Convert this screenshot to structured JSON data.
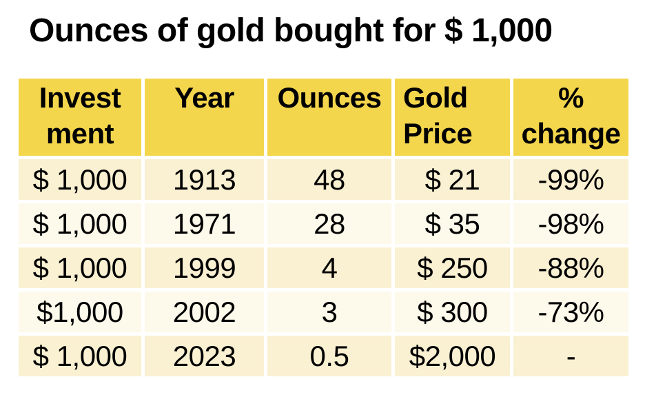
{
  "chart_data": {
    "type": "table",
    "title": "Ounces of gold bought for $ 1,000",
    "columns": [
      {
        "name": "Investment",
        "display": "Invest\nment"
      },
      {
        "name": "Year",
        "display": "Year"
      },
      {
        "name": "Ounces",
        "display": "Ounces"
      },
      {
        "name": "Gold Price",
        "display": "Gold\nPrice"
      },
      {
        "name": "% change",
        "display": "%\nchange"
      }
    ],
    "rows": [
      [
        "$ 1,000",
        "1913",
        "48",
        "$ 21",
        "-99%"
      ],
      [
        "$ 1,000",
        "1971",
        "28",
        "$ 35",
        "-98%"
      ],
      [
        "$ 1,000",
        "1999",
        "4",
        "$ 250",
        "-88%"
      ],
      [
        "$1,000",
        "2002",
        "3",
        "$ 300",
        "-73%"
      ],
      [
        "$ 1,000",
        "2023",
        "0.5",
        "$2,000",
        "-"
      ]
    ]
  },
  "colors": {
    "page_bg": "#FFFFFF",
    "text": "#000000",
    "header_bg": "#F4D64C",
    "row_dark_bg": "#FAF0D2",
    "row_light_bg": "#FDF9EB"
  }
}
